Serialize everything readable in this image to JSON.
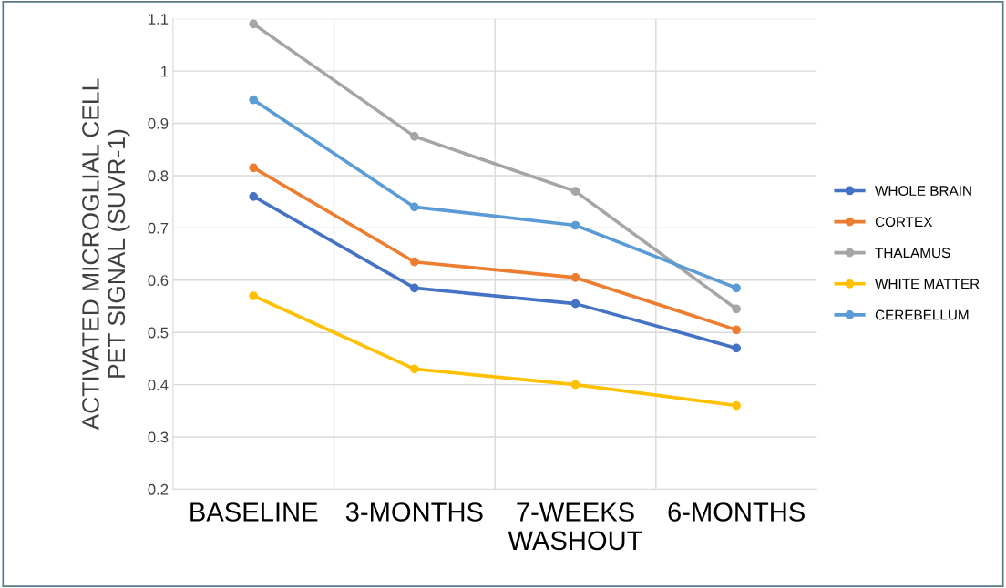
{
  "chart_data": {
    "type": "line",
    "ylabel": "ACTIVATED MICROGLIAL CELL\nPET SIGNAL (SUVR-1)",
    "categories": [
      "BASELINE",
      "3-MONTHS",
      "7-WEEKS\nWASHOUT",
      "6-MONTHS"
    ],
    "series": [
      {
        "name": "WHOLE BRAIN",
        "color": "#4472c4",
        "values": [
          0.76,
          0.585,
          0.555,
          0.47
        ]
      },
      {
        "name": "CORTEX",
        "color": "#ed7d31",
        "values": [
          0.815,
          0.635,
          0.605,
          0.505
        ]
      },
      {
        "name": "THALAMUS",
        "color": "#a5a5a5",
        "values": [
          1.09,
          0.875,
          0.77,
          0.545
        ]
      },
      {
        "name": "WHITE MATTER",
        "color": "#ffc000",
        "values": [
          0.57,
          0.43,
          0.4,
          0.36
        ]
      },
      {
        "name": "CEREBELLUM",
        "color": "#5b9bd5",
        "values": [
          0.945,
          0.74,
          0.705,
          0.585
        ]
      }
    ],
    "ylim": [
      0.2,
      1.1
    ],
    "yticks": [
      {
        "value": 0.2,
        "label": "0.2"
      },
      {
        "value": 0.3,
        "label": "0.3"
      },
      {
        "value": 0.4,
        "label": "0.4"
      },
      {
        "value": 0.5,
        "label": "0.5"
      },
      {
        "value": 0.6,
        "label": "0.6"
      },
      {
        "value": 0.7,
        "label": "0.7"
      },
      {
        "value": 0.8,
        "label": "0.8"
      },
      {
        "value": 0.9,
        "label": "0.9"
      },
      {
        "value": 1,
        "label": "1"
      },
      {
        "value": 1.1,
        "label": "1.1"
      }
    ],
    "grid": true,
    "legend": "right",
    "marker": "circle",
    "line_style": "solid"
  }
}
